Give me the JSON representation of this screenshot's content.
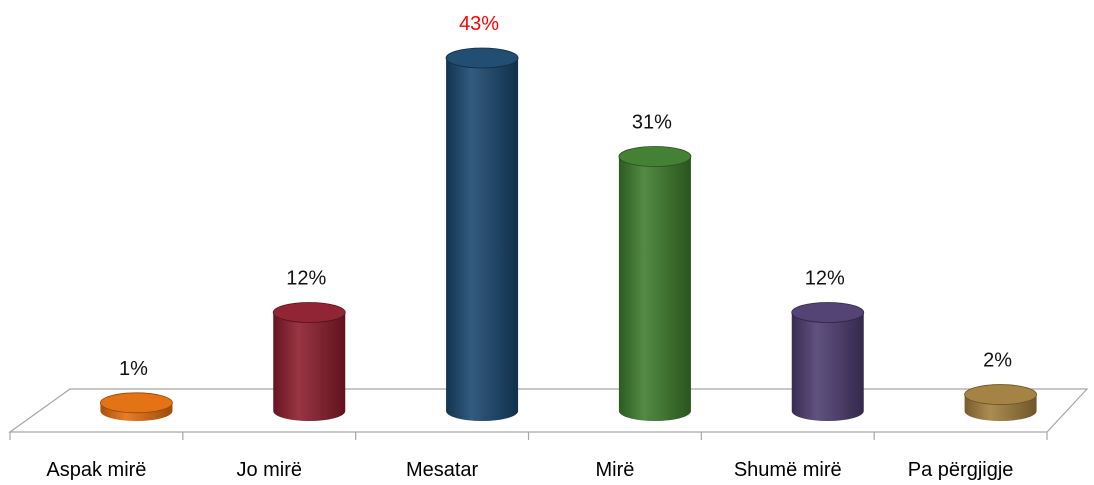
{
  "chart_data": {
    "type": "bar",
    "style": "3d-cylinder",
    "categories": [
      "Aspak mirë",
      "Jo mirë",
      "Mesatar",
      "Mirë",
      "Shumë mirë",
      "Pa përgjigje"
    ],
    "values": [
      1,
      12,
      43,
      31,
      12,
      2
    ],
    "data_labels": [
      "1%",
      "12%",
      "43%",
      "31%",
      "12%",
      "2%"
    ],
    "unit": "%",
    "colors": [
      "#e36c0a",
      "#8b1a2a",
      "#17456c",
      "#3b7a2a",
      "#4a3a6e",
      "#a07c3a"
    ],
    "highlight_label_color": "#ff0000",
    "highlight_index": 2,
    "ylim": [
      0,
      43
    ],
    "grid": false,
    "legend": "none"
  }
}
